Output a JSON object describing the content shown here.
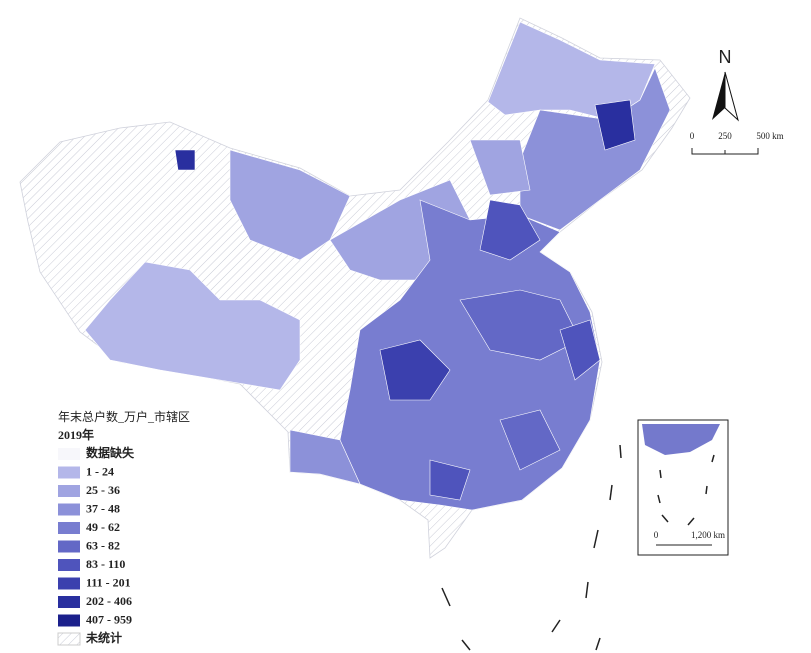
{
  "map": {
    "north_label": "N",
    "scale_main": [
      "0",
      "250",
      "500 km"
    ],
    "scale_inset": [
      "0",
      "1,200 km"
    ],
    "legend": {
      "title": "年末总户数_万户_市辖区",
      "subtitle": "2019年",
      "items": [
        {
          "label": "数据缺失",
          "color": "#f7f7fb",
          "hatched": false
        },
        {
          "label": "1 - 24",
          "color": "#b4b7e9",
          "hatched": false
        },
        {
          "label": "25 - 36",
          "color": "#a0a4e1",
          "hatched": false
        },
        {
          "label": "37 - 48",
          "color": "#8c91d9",
          "hatched": false
        },
        {
          "label": "49 - 62",
          "color": "#787dd0",
          "hatched": false
        },
        {
          "label": "63 - 82",
          "color": "#6368c6",
          "hatched": false
        },
        {
          "label": "83 - 110",
          "color": "#4f54bc",
          "hatched": false
        },
        {
          "label": "111 - 201",
          "color": "#3b40ae",
          "hatched": false
        },
        {
          "label": "202 - 406",
          "color": "#292f9f",
          "hatched": false
        },
        {
          "label": "407 - 959",
          "color": "#1b208c",
          "hatched": false
        },
        {
          "label": "未统计",
          "color": "#ffffff",
          "hatched": true
        }
      ]
    }
  }
}
